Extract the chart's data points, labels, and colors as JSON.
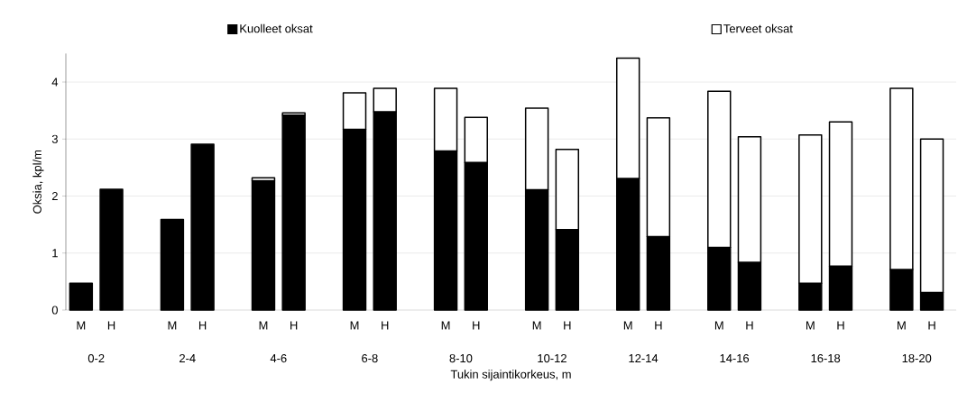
{
  "chart_data": {
    "type": "bar",
    "stacked": true,
    "categories": [
      "M",
      "H",
      "M",
      "H",
      "M",
      "H",
      "M",
      "H",
      "M",
      "H",
      "M",
      "H",
      "M",
      "H",
      "M",
      "H",
      "M",
      "H",
      "M",
      "H"
    ],
    "annotations": [
      "0-2",
      "2-4",
      "4-6",
      "6-8",
      "8-10",
      "10-12",
      "12-14",
      "14-16",
      "16-18",
      "18-20"
    ],
    "xlabel": "Tukin sijaintikorkeus, m",
    "ylabel": "Oksia, kpl/m",
    "series": [
      {
        "name": "Kuolleet oksat",
        "color": "#000000",
        "values": [
          0.47,
          2.12,
          1.59,
          2.91,
          2.27,
          3.42,
          3.17,
          3.48,
          2.79,
          2.59,
          2.11,
          1.41,
          2.31,
          1.29,
          1.1,
          0.84,
          0.47,
          0.77,
          0.71,
          0.31
        ]
      },
      {
        "name": "Terveet oksat",
        "color": "#ffffff",
        "values": [
          null,
          null,
          null,
          null,
          0.05,
          0.04,
          0.64,
          0.41,
          1.1,
          0.79,
          1.43,
          1.41,
          2.11,
          2.08,
          2.74,
          2.2,
          2.6,
          2.53,
          3.18,
          2.69
        ]
      }
    ],
    "ylim": [
      0,
      4.5
    ],
    "yticks": [
      0,
      1,
      2,
      3,
      4
    ],
    "grid": "y",
    "legend": "top"
  }
}
